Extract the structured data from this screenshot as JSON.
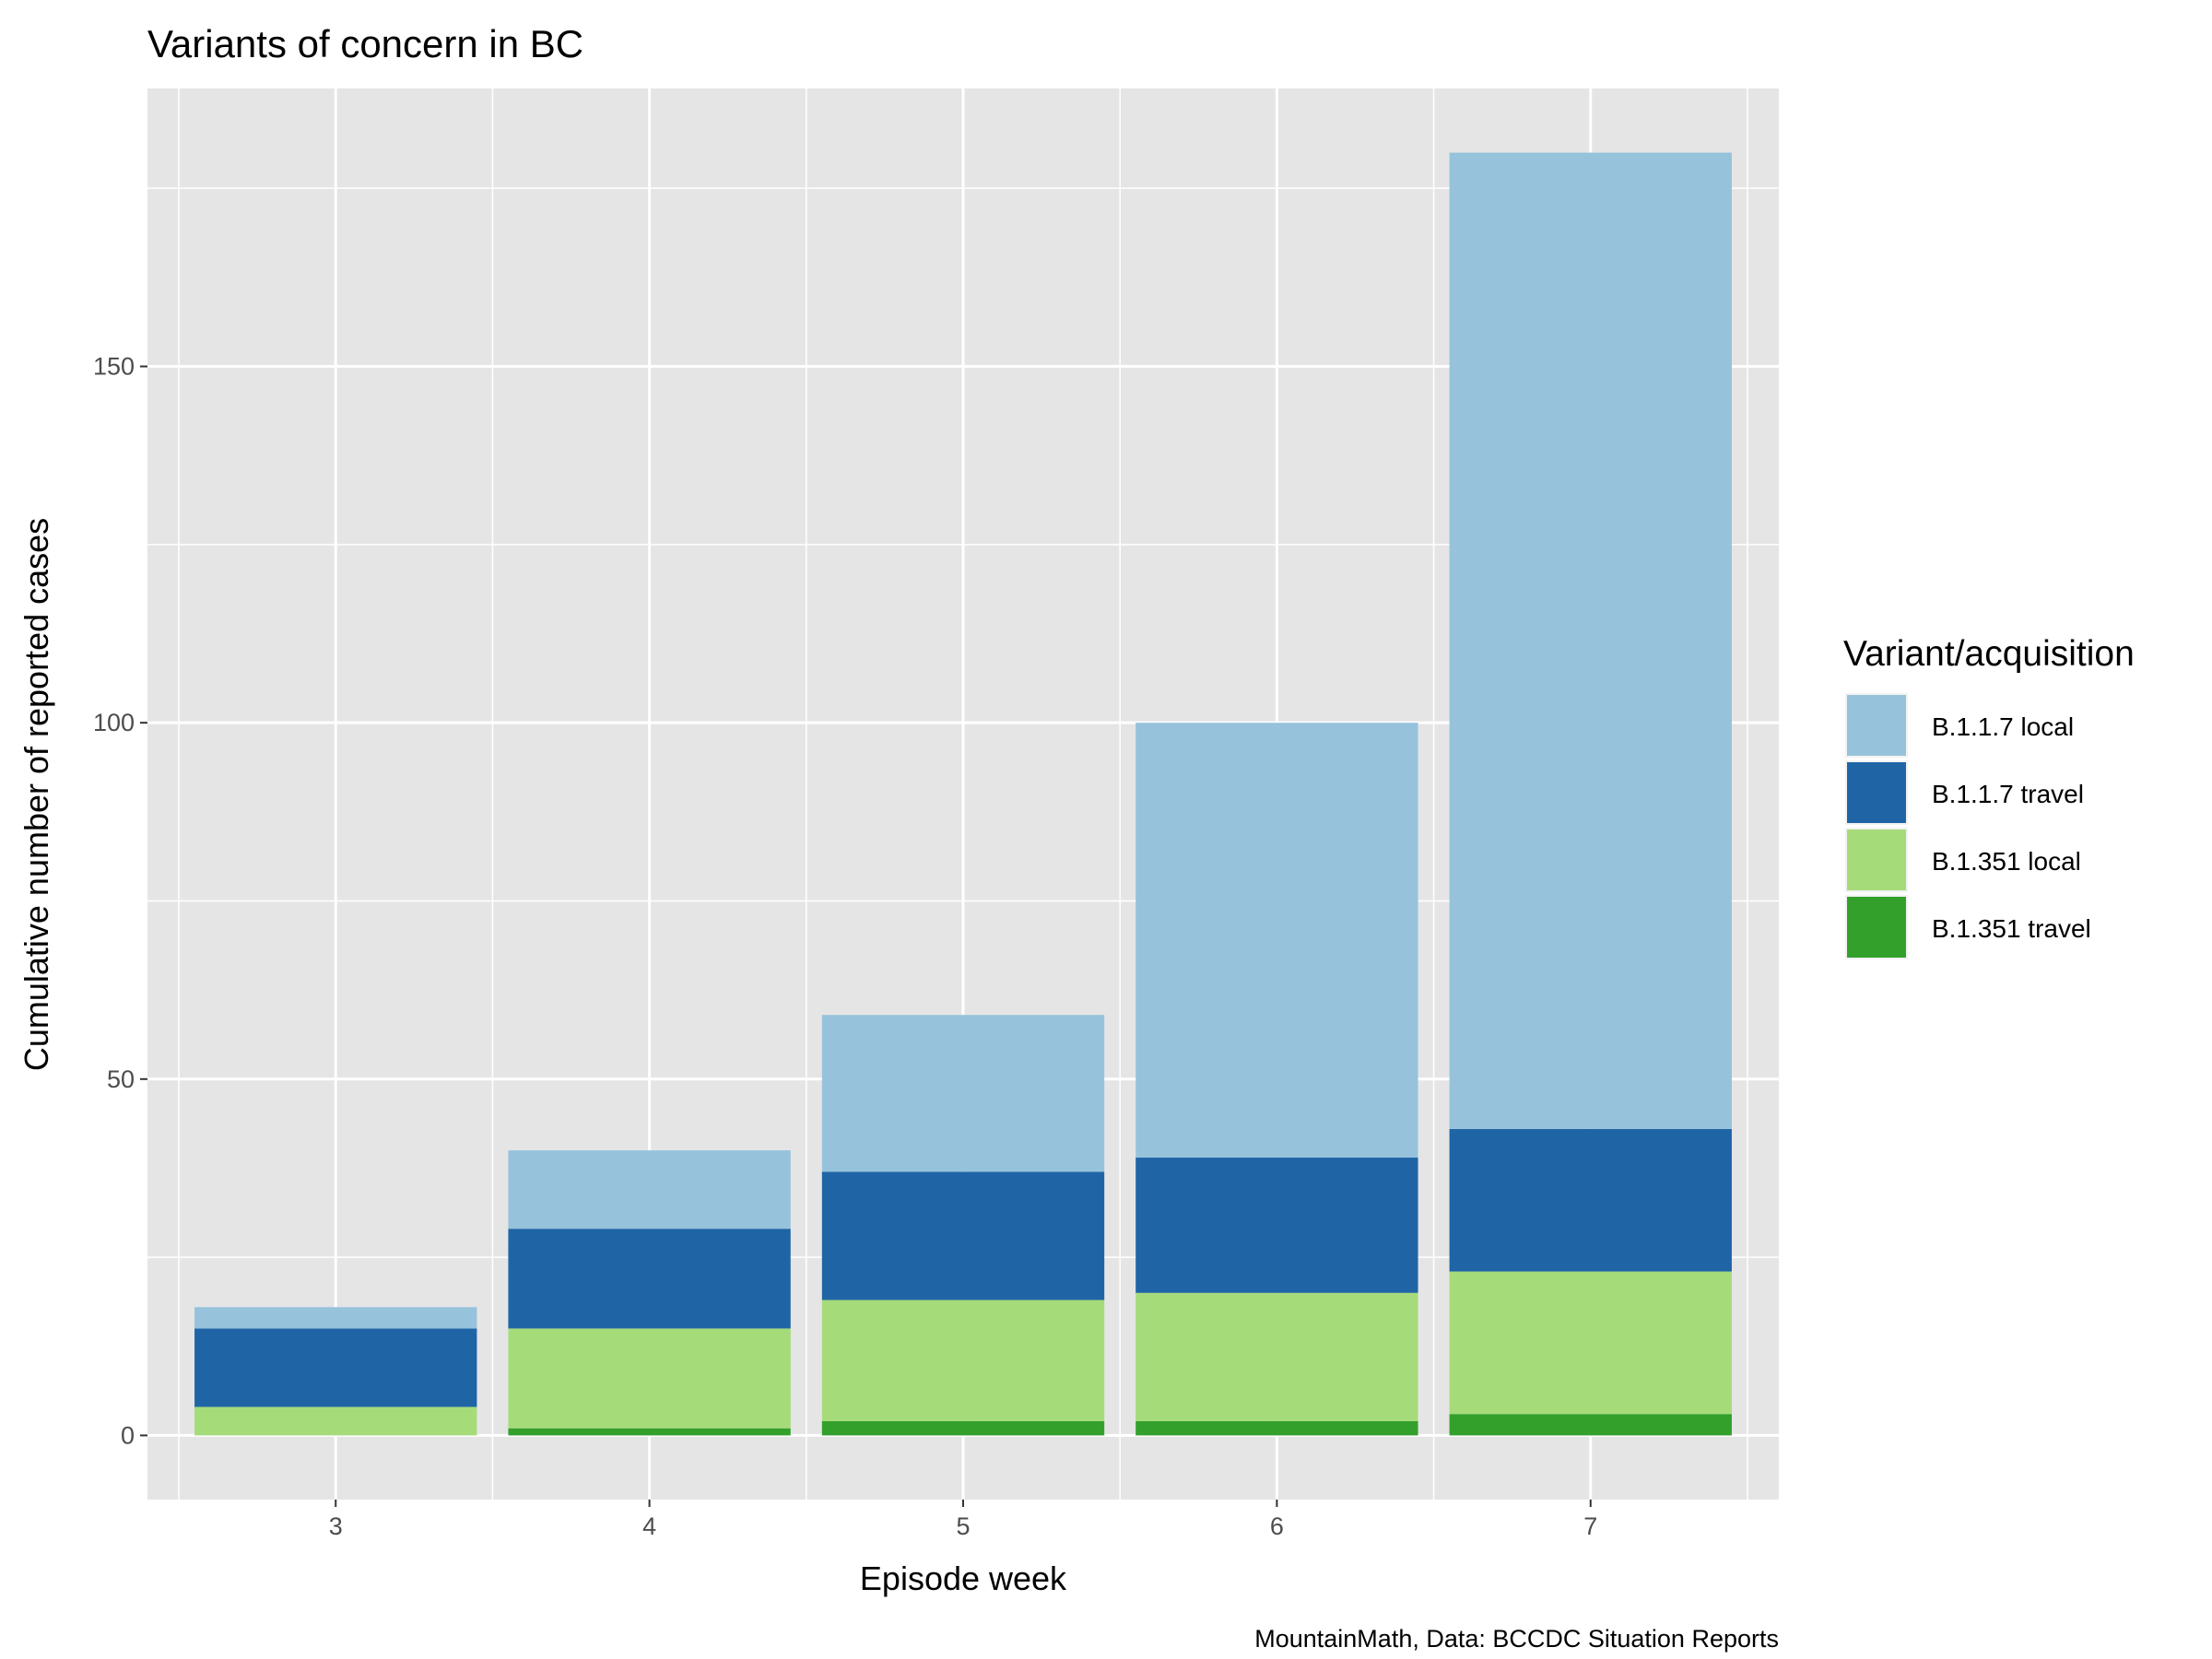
{
  "chart_data": {
    "type": "bar",
    "stacked": true,
    "title": "Variants of concern in BC",
    "xlabel": "Episode week",
    "ylabel": "Cumulative number of reported cases",
    "caption": "MountainMath, Data: BCCDC Situation Reports",
    "categories": [
      "3",
      "4",
      "5",
      "6",
      "7"
    ],
    "ylim": [
      -9,
      189
    ],
    "yticks": [
      0,
      50,
      100,
      150
    ],
    "grid": true,
    "legend": {
      "title": "Variant/acquisition",
      "placement": "right"
    },
    "series": [
      {
        "name": "B.1.351 travel",
        "color": "#33A02C",
        "values": [
          0,
          1,
          2,
          2,
          3
        ]
      },
      {
        "name": "B.1.351 local",
        "color": "#A6DB7A",
        "values": [
          4,
          14,
          17,
          18,
          20
        ]
      },
      {
        "name": "B.1.1.7 travel",
        "color": "#1F65A6",
        "values": [
          11,
          14,
          18,
          19,
          20
        ]
      },
      {
        "name": "B.1.1.7 local",
        "color": "#96C3DB",
        "values": [
          3,
          11,
          22,
          61,
          137
        ]
      }
    ],
    "legend_order": [
      "B.1.1.7 local",
      "B.1.1.7 travel",
      "B.1.351 local",
      "B.1.351 travel"
    ]
  }
}
